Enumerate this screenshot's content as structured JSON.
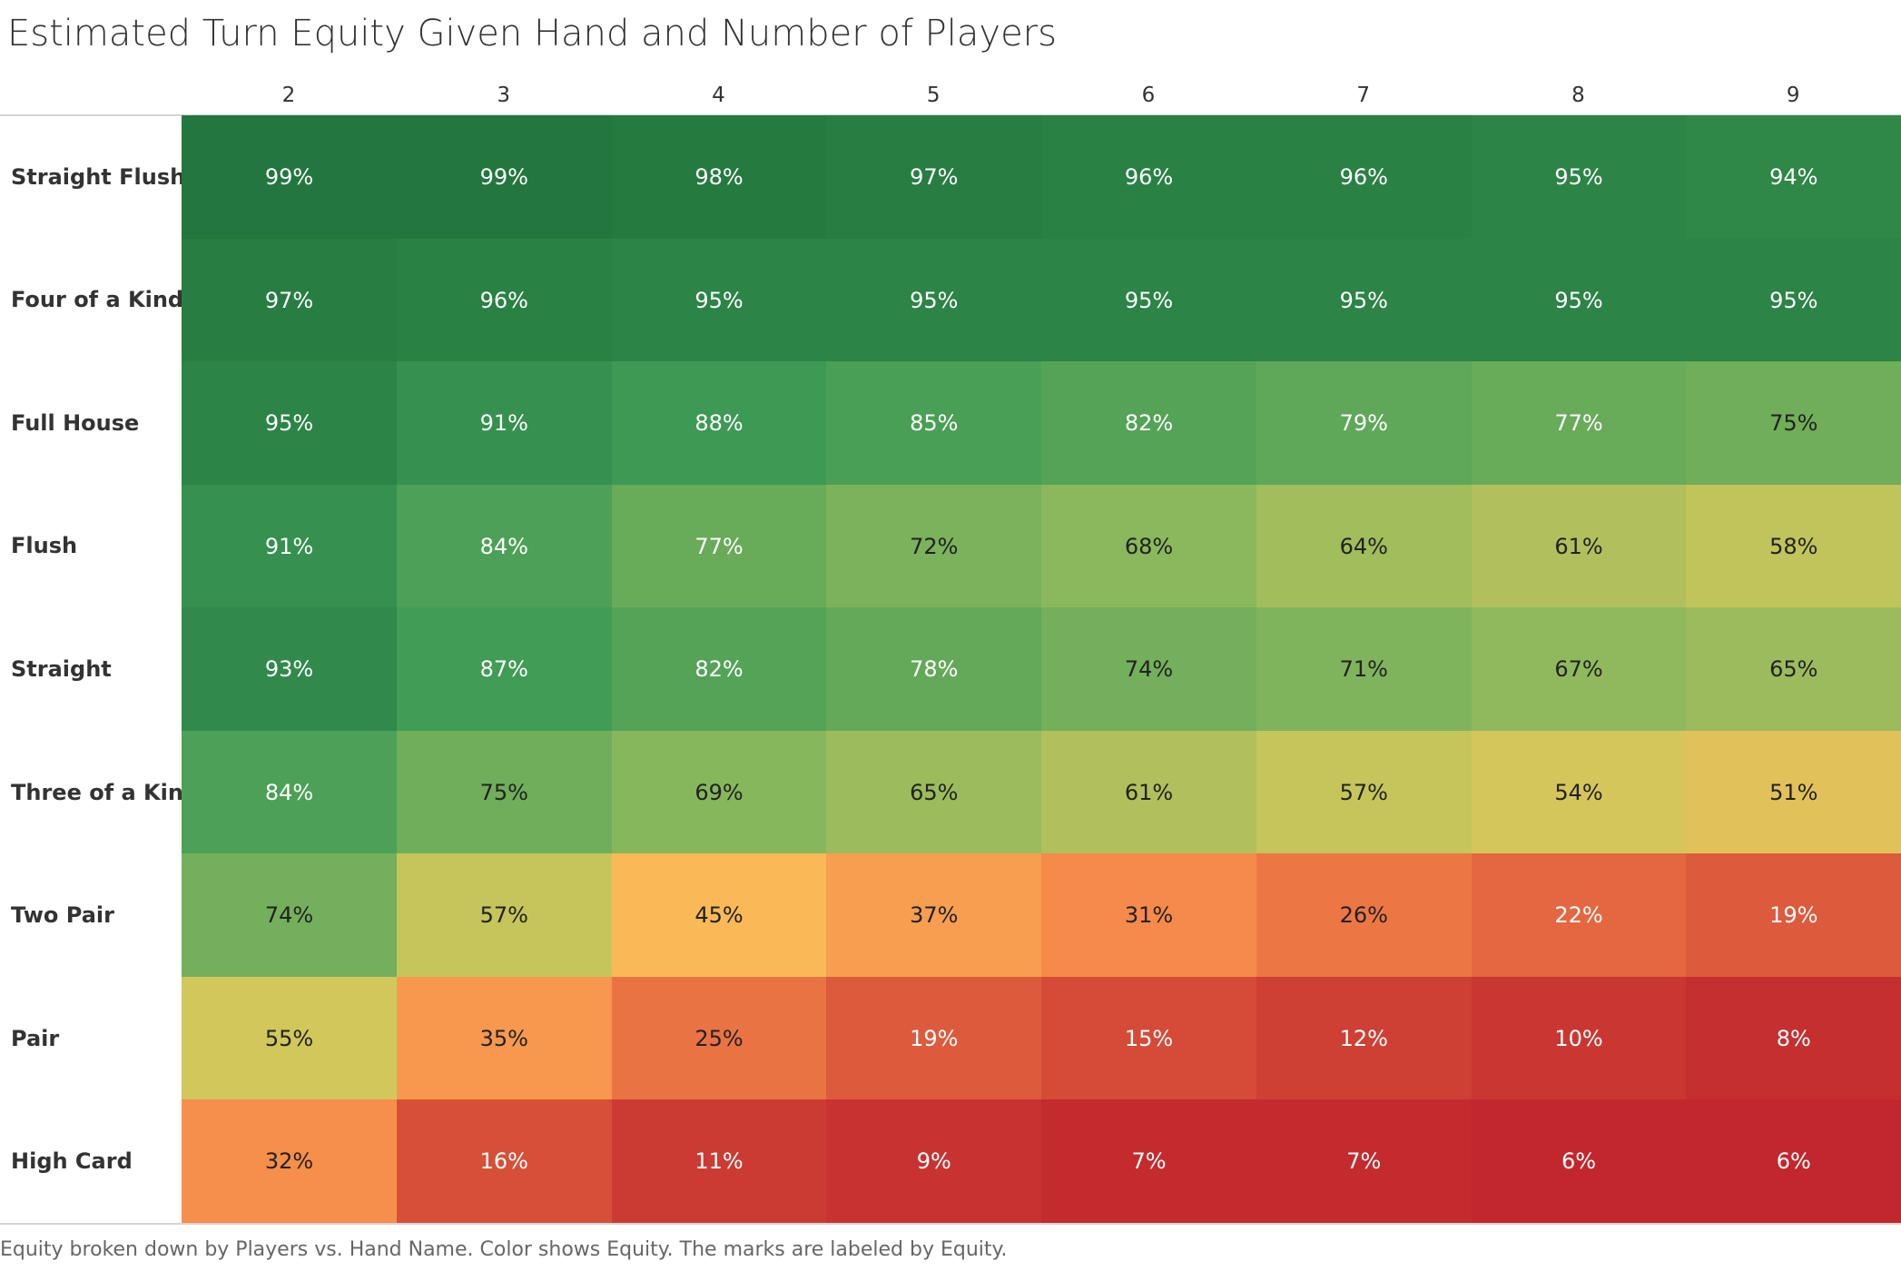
{
  "title": "Estimated Turn Equity Given Hand and Number of Players",
  "caption": "Equity broken down by Players vs. Hand Name.  Color shows Equity.  The marks are labeled by Equity.",
  "chart_data": {
    "type": "heatmap",
    "title": "Estimated Turn Equity Given Hand and Number of Players",
    "x_categories": [
      "2",
      "3",
      "4",
      "5",
      "6",
      "7",
      "8",
      "9"
    ],
    "y_categories": [
      "Straight Flush",
      "Four of a Kind",
      "Full House",
      "Flush",
      "Straight",
      "Three of a Kind",
      "Two Pair",
      "Pair",
      "High Card"
    ],
    "values": [
      [
        99,
        99,
        98,
        97,
        96,
        96,
        95,
        94
      ],
      [
        97,
        96,
        95,
        95,
        95,
        95,
        95,
        95
      ],
      [
        95,
        91,
        88,
        85,
        82,
        79,
        77,
        75
      ],
      [
        91,
        84,
        77,
        72,
        68,
        64,
        61,
        58
      ],
      [
        93,
        87,
        82,
        78,
        74,
        71,
        67,
        65
      ],
      [
        84,
        75,
        69,
        65,
        61,
        57,
        54,
        51
      ],
      [
        74,
        57,
        45,
        37,
        31,
        26,
        22,
        19
      ],
      [
        55,
        35,
        25,
        19,
        15,
        12,
        10,
        8
      ],
      [
        32,
        16,
        11,
        9,
        7,
        7,
        6,
        6
      ]
    ],
    "value_unit": "%",
    "color_scale": [
      "#c1272d",
      "#f5874a",
      "#fab957",
      "#d1c75b",
      "#8bb85d",
      "#3d9a55",
      "#23773e"
    ]
  }
}
